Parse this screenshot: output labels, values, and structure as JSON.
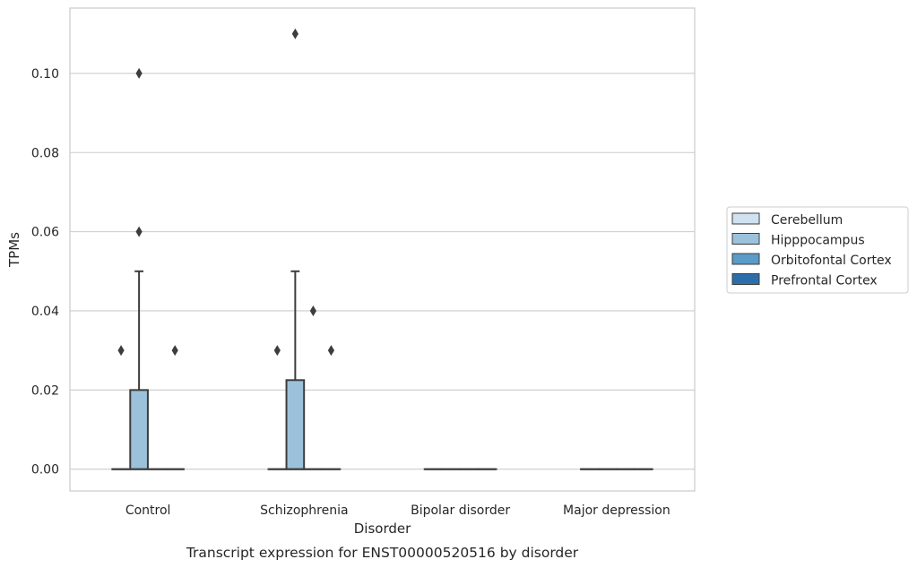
{
  "chart_data": {
    "type": "box",
    "xlabel": "Disorder",
    "ylabel": "TPMs",
    "caption": "Transcript expression for ENST00000520516 by disorder",
    "ylim": [
      -0.0055,
      0.1165
    ],
    "yticks": [
      "0.00",
      "0.02",
      "0.04",
      "0.06",
      "0.08",
      "0.10"
    ],
    "ytick_values": [
      0,
      0.02,
      0.04,
      0.06,
      0.08,
      0.1
    ],
    "grid": true,
    "legend_position": "right",
    "categories": [
      "Control",
      "Schizophrenia",
      "Bipolar disorder",
      "Major depression"
    ],
    "series": [
      {
        "name": "Cerebellum",
        "color": "#d0e1f0",
        "boxes": [
          {
            "q1": 0,
            "median": 0,
            "q3": 0,
            "whisker_low": 0,
            "whisker_high": 0,
            "outliers": [
              0.03
            ]
          },
          {
            "q1": 0,
            "median": 0,
            "q3": 0,
            "whisker_low": 0,
            "whisker_high": 0,
            "outliers": [
              0.03
            ]
          },
          {
            "q1": 0,
            "median": 0,
            "q3": 0,
            "whisker_low": 0,
            "whisker_high": 0,
            "outliers": []
          },
          {
            "q1": 0,
            "median": 0,
            "q3": 0,
            "whisker_low": 0,
            "whisker_high": 0,
            "outliers": []
          }
        ]
      },
      {
        "name": "Hipppocampus",
        "color": "#9bc2da",
        "boxes": [
          {
            "q1": 0,
            "median": 0,
            "q3": 0.02,
            "whisker_low": 0,
            "whisker_high": 0.05,
            "outliers": [
              0.06,
              0.1
            ]
          },
          {
            "q1": 0,
            "median": 0,
            "q3": 0.0225,
            "whisker_low": 0,
            "whisker_high": 0.05,
            "outliers": [
              0.11
            ]
          },
          {
            "q1": 0,
            "median": 0,
            "q3": 0,
            "whisker_low": 0,
            "whisker_high": 0,
            "outliers": []
          },
          {
            "q1": 0,
            "median": 0,
            "q3": 0,
            "whisker_low": 0,
            "whisker_high": 0,
            "outliers": []
          }
        ]
      },
      {
        "name": "Orbitofontal Cortex",
        "color": "#5a9bc8",
        "boxes": [
          {
            "q1": 0,
            "median": 0,
            "q3": 0,
            "whisker_low": 0,
            "whisker_high": 0,
            "outliers": []
          },
          {
            "q1": 0,
            "median": 0,
            "q3": 0,
            "whisker_low": 0,
            "whisker_high": 0,
            "outliers": [
              0.04
            ]
          },
          {
            "q1": 0,
            "median": 0,
            "q3": 0,
            "whisker_low": 0,
            "whisker_high": 0,
            "outliers": []
          },
          {
            "q1": 0,
            "median": 0,
            "q3": 0,
            "whisker_low": 0,
            "whisker_high": 0,
            "outliers": []
          }
        ]
      },
      {
        "name": "Prefrontal Cortex",
        "color": "#2b6ea9",
        "boxes": [
          {
            "q1": 0,
            "median": 0,
            "q3": 0,
            "whisker_low": 0,
            "whisker_high": 0,
            "outliers": [
              0.03
            ]
          },
          {
            "q1": 0,
            "median": 0,
            "q3": 0,
            "whisker_low": 0,
            "whisker_high": 0,
            "outliers": [
              0.03
            ]
          },
          {
            "q1": 0,
            "median": 0,
            "q3": 0,
            "whisker_low": 0,
            "whisker_high": 0,
            "outliers": []
          },
          {
            "q1": 0,
            "median": 0,
            "q3": 0,
            "whisker_low": 0,
            "whisker_high": 0,
            "outliers": []
          }
        ]
      }
    ]
  }
}
